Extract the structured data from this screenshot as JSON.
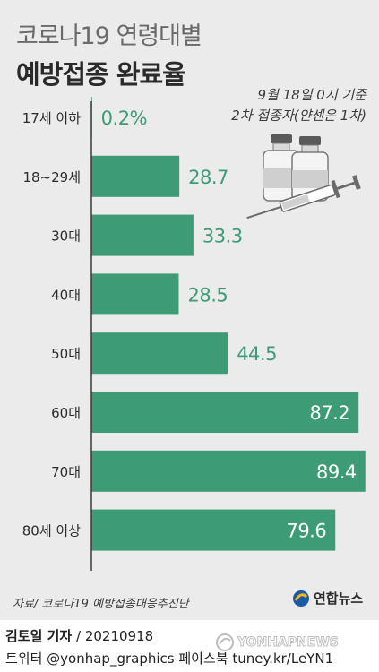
{
  "header": {
    "title": "코로나19 연령대별",
    "subtitle": "예방접종 완료율",
    "note_line1": "9월 18일 0시 기준",
    "note_line2": "2차 접종자(얀센은 1차)"
  },
  "colors": {
    "bar": "#3d9b76",
    "value_outside": "#3d9b76",
    "value_inside": "#ffffff",
    "axis": "#3a3a3a",
    "background": "#ebebeb"
  },
  "chart_data": {
    "type": "bar",
    "orientation": "horizontal",
    "title": "예방접종 완료율",
    "categories": [
      "17세 이하",
      "18~29세",
      "30대",
      "40대",
      "50대",
      "60대",
      "70대",
      "80세 이상"
    ],
    "values": [
      0.2,
      28.7,
      33.3,
      28.5,
      44.5,
      87.2,
      89.4,
      79.6
    ],
    "value_labels": [
      "0.2%",
      "28.7",
      "33.3",
      "28.5",
      "44.5",
      "87.2",
      "89.4",
      "79.6"
    ],
    "xlim": [
      0,
      100
    ],
    "grid": false,
    "legend": "none"
  },
  "footer": {
    "source": "자료/ 코로나19 예방접종대응추진단",
    "logo_text": "연합뉴스",
    "reporter": "김토일 기자",
    "date": "/ 20210918",
    "social": "트위터 @yonhap_graphics 페이스북 tuney.kr/LeYN1",
    "watermark": "YONHAPNEWS"
  },
  "icons": {
    "illustration": "vaccine-vials-syringe-icon",
    "logo": "yonhap-logo-icon"
  }
}
